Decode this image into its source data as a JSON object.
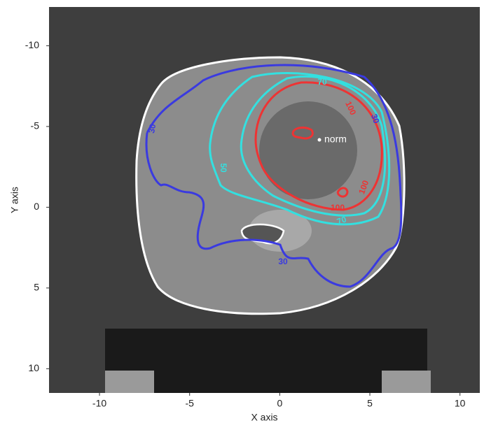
{
  "chart_data": {
    "type": "contour",
    "xlabel": "X axis",
    "ylabel": "Y axis",
    "xlim": [
      -12.8,
      11.1
    ],
    "ylim": [
      -12.4,
      11.5
    ],
    "y_inverted": true,
    "xticks": [
      -10,
      -5,
      0,
      5,
      10
    ],
    "yticks": [
      -10,
      -5,
      0,
      5,
      10
    ],
    "levels": [
      {
        "level": 30,
        "color": "#3a3ae0"
      },
      {
        "level": 50,
        "color": "#33e0e0"
      },
      {
        "level": 70,
        "color": "#33e0e0"
      },
      {
        "level": 100,
        "color": "#ee3333"
      }
    ],
    "annotation": "norm"
  }
}
